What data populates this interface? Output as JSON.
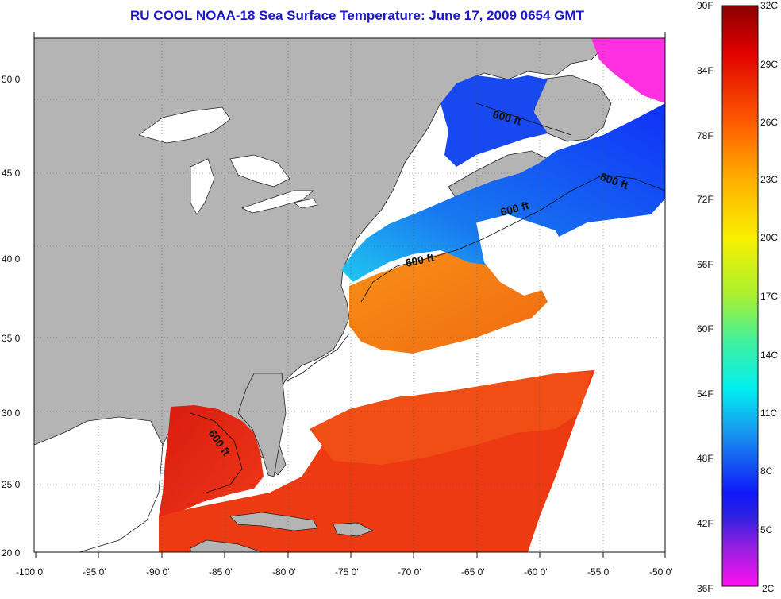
{
  "title": "RU COOL  NOAA-18  Sea Surface Temperature:  June 17, 2009 0654 GMT",
  "lon_ticks": [
    "-100 0'",
    "-95 0'",
    "-90 0'",
    "-85 0'",
    "-80 0'",
    "-75 0'",
    "-70 0'",
    "-65 0'",
    "-60 0'",
    "-55 0'",
    "-50 0'"
  ],
  "lat_ticks": [
    "50 0'",
    "45 0'",
    "40 0'",
    "35 0'",
    "30 0'",
    "25 0'",
    "20 0'"
  ],
  "colorbar": {
    "fahrenheit": [
      "90F",
      "84F",
      "78F",
      "72F",
      "66F",
      "60F",
      "54F",
      "48F",
      "42F",
      "36F"
    ],
    "celsius": [
      "32C",
      "29C",
      "26C",
      "23C",
      "20C",
      "17C",
      "14C",
      "11C",
      "8C",
      "5C",
      "2C"
    ]
  },
  "contour_labels": [
    "600 ft",
    "600 ft",
    "600 ft",
    "600 ft",
    "600 ft"
  ],
  "colors": {
    "land": "#b4b4b4",
    "no_data": "#ffffff",
    "title": "#1a18c8",
    "warm": "#e8300a",
    "cold": "#1030f0"
  }
}
